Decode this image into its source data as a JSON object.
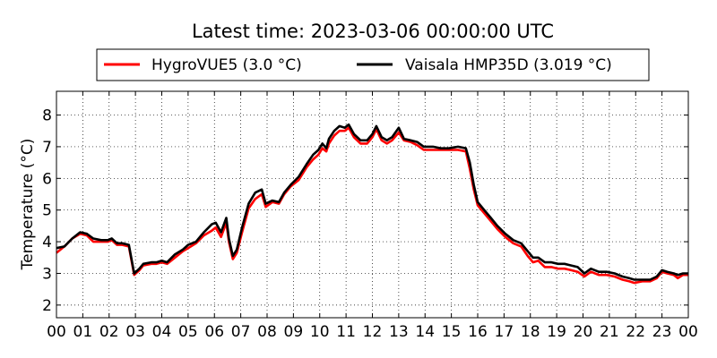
{
  "chart_data": {
    "type": "line",
    "title": "Latest time: 2023-03-06 00:00:00 UTC",
    "xlabel": "",
    "ylabel": "Temperature (°C)",
    "xlim": [
      0,
      24
    ],
    "ylim": [
      1.6,
      8.75
    ],
    "x_ticks": [
      0,
      1,
      2,
      3,
      4,
      5,
      6,
      7,
      8,
      9,
      10,
      11,
      12,
      13,
      14,
      15,
      16,
      17,
      18,
      19,
      20,
      21,
      22,
      23,
      24
    ],
    "x_tick_labels": [
      "00",
      "01",
      "02",
      "03",
      "04",
      "05",
      "06",
      "07",
      "08",
      "09",
      "10",
      "11",
      "12",
      "13",
      "14",
      "15",
      "16",
      "17",
      "18",
      "19",
      "20",
      "21",
      "22",
      "23",
      "00"
    ],
    "y_ticks": [
      2,
      3,
      4,
      5,
      6,
      7,
      8
    ],
    "y_tick_labels": [
      "2",
      "3",
      "4",
      "5",
      "6",
      "7",
      "8"
    ],
    "grid": true,
    "legend_position": "top-center",
    "series": [
      {
        "name": "HygroVUE5 (3.0 °C)",
        "color": "#ff0000",
        "points": [
          [
            0,
            3.65
          ],
          [
            0.3,
            3.85
          ],
          [
            0.6,
            4.1
          ],
          [
            0.9,
            4.25
          ],
          [
            1.15,
            4.2
          ],
          [
            1.4,
            4.0
          ],
          [
            1.7,
            4.0
          ],
          [
            1.95,
            4.0
          ],
          [
            2.1,
            4.05
          ],
          [
            2.3,
            3.9
          ],
          [
            2.5,
            3.9
          ],
          [
            2.75,
            3.85
          ],
          [
            2.95,
            2.95
          ],
          [
            3.15,
            3.1
          ],
          [
            3.3,
            3.25
          ],
          [
            3.6,
            3.3
          ],
          [
            3.8,
            3.3
          ],
          [
            4.0,
            3.35
          ],
          [
            4.2,
            3.3
          ],
          [
            4.5,
            3.5
          ],
          [
            4.8,
            3.7
          ],
          [
            5.0,
            3.8
          ],
          [
            5.3,
            3.95
          ],
          [
            5.6,
            4.2
          ],
          [
            5.9,
            4.35
          ],
          [
            6.05,
            4.45
          ],
          [
            6.25,
            4.15
          ],
          [
            6.45,
            4.6
          ],
          [
            6.55,
            4.0
          ],
          [
            6.7,
            3.45
          ],
          [
            6.85,
            3.65
          ],
          [
            7.05,
            4.3
          ],
          [
            7.3,
            5.05
          ],
          [
            7.55,
            5.35
          ],
          [
            7.8,
            5.5
          ],
          [
            7.95,
            5.1
          ],
          [
            8.2,
            5.25
          ],
          [
            8.45,
            5.2
          ],
          [
            8.65,
            5.5
          ],
          [
            8.9,
            5.75
          ],
          [
            9.2,
            5.95
          ],
          [
            9.5,
            6.35
          ],
          [
            9.75,
            6.6
          ],
          [
            9.95,
            6.75
          ],
          [
            10.1,
            6.95
          ],
          [
            10.25,
            6.85
          ],
          [
            10.35,
            7.1
          ],
          [
            10.55,
            7.35
          ],
          [
            10.75,
            7.5
          ],
          [
            10.95,
            7.5
          ],
          [
            11.1,
            7.6
          ],
          [
            11.3,
            7.3
          ],
          [
            11.55,
            7.1
          ],
          [
            11.8,
            7.1
          ],
          [
            12.0,
            7.3
          ],
          [
            12.15,
            7.55
          ],
          [
            12.35,
            7.2
          ],
          [
            12.55,
            7.1
          ],
          [
            12.75,
            7.2
          ],
          [
            13.0,
            7.45
          ],
          [
            13.2,
            7.2
          ],
          [
            13.45,
            7.15
          ],
          [
            13.7,
            7.05
          ],
          [
            13.95,
            6.9
          ],
          [
            14.3,
            6.9
          ],
          [
            14.6,
            6.9
          ],
          [
            14.9,
            6.9
          ],
          [
            15.25,
            6.9
          ],
          [
            15.55,
            6.85
          ],
          [
            15.7,
            6.3
          ],
          [
            15.85,
            5.65
          ],
          [
            16.0,
            5.15
          ],
          [
            16.25,
            4.9
          ],
          [
            16.5,
            4.65
          ],
          [
            16.75,
            4.4
          ],
          [
            17.05,
            4.15
          ],
          [
            17.35,
            3.95
          ],
          [
            17.65,
            3.85
          ],
          [
            17.9,
            3.55
          ],
          [
            18.1,
            3.35
          ],
          [
            18.3,
            3.4
          ],
          [
            18.55,
            3.2
          ],
          [
            18.8,
            3.2
          ],
          [
            19.05,
            3.15
          ],
          [
            19.3,
            3.15
          ],
          [
            19.55,
            3.1
          ],
          [
            19.8,
            3.05
          ],
          [
            20.05,
            2.9
          ],
          [
            20.3,
            3.05
          ],
          [
            20.6,
            2.95
          ],
          [
            20.9,
            2.95
          ],
          [
            21.2,
            2.9
          ],
          [
            21.5,
            2.8
          ],
          [
            21.75,
            2.75
          ],
          [
            21.95,
            2.7
          ],
          [
            22.25,
            2.75
          ],
          [
            22.55,
            2.75
          ],
          [
            22.8,
            2.85
          ],
          [
            23.0,
            3.05
          ],
          [
            23.2,
            3.0
          ],
          [
            23.45,
            2.95
          ],
          [
            23.6,
            2.85
          ],
          [
            23.8,
            2.95
          ],
          [
            24.0,
            2.95
          ]
        ]
      },
      {
        "name": "Vaisala HMP35D (3.019 °C)",
        "color": "#000000",
        "points": [
          [
            0,
            3.8
          ],
          [
            0.3,
            3.85
          ],
          [
            0.6,
            4.1
          ],
          [
            0.9,
            4.3
          ],
          [
            1.15,
            4.25
          ],
          [
            1.4,
            4.1
          ],
          [
            1.7,
            4.05
          ],
          [
            1.95,
            4.05
          ],
          [
            2.1,
            4.1
          ],
          [
            2.3,
            3.95
          ],
          [
            2.5,
            3.95
          ],
          [
            2.75,
            3.9
          ],
          [
            2.95,
            3.0
          ],
          [
            3.15,
            3.15
          ],
          [
            3.3,
            3.3
          ],
          [
            3.6,
            3.35
          ],
          [
            3.8,
            3.35
          ],
          [
            4.0,
            3.4
          ],
          [
            4.2,
            3.35
          ],
          [
            4.5,
            3.6
          ],
          [
            4.8,
            3.75
          ],
          [
            5.0,
            3.9
          ],
          [
            5.3,
            4.0
          ],
          [
            5.6,
            4.3
          ],
          [
            5.9,
            4.55
          ],
          [
            6.05,
            4.6
          ],
          [
            6.25,
            4.3
          ],
          [
            6.45,
            4.75
          ],
          [
            6.55,
            4.1
          ],
          [
            6.7,
            3.55
          ],
          [
            6.85,
            3.75
          ],
          [
            7.05,
            4.45
          ],
          [
            7.3,
            5.2
          ],
          [
            7.55,
            5.55
          ],
          [
            7.8,
            5.65
          ],
          [
            7.95,
            5.2
          ],
          [
            8.2,
            5.3
          ],
          [
            8.45,
            5.25
          ],
          [
            8.65,
            5.55
          ],
          [
            8.9,
            5.8
          ],
          [
            9.2,
            6.05
          ],
          [
            9.5,
            6.45
          ],
          [
            9.75,
            6.75
          ],
          [
            9.95,
            6.9
          ],
          [
            10.1,
            7.1
          ],
          [
            10.25,
            6.95
          ],
          [
            10.35,
            7.25
          ],
          [
            10.55,
            7.5
          ],
          [
            10.75,
            7.65
          ],
          [
            10.95,
            7.6
          ],
          [
            11.1,
            7.7
          ],
          [
            11.3,
            7.4
          ],
          [
            11.55,
            7.2
          ],
          [
            11.8,
            7.2
          ],
          [
            12.0,
            7.4
          ],
          [
            12.15,
            7.65
          ],
          [
            12.35,
            7.3
          ],
          [
            12.55,
            7.2
          ],
          [
            12.75,
            7.3
          ],
          [
            13.0,
            7.6
          ],
          [
            13.2,
            7.25
          ],
          [
            13.45,
            7.2
          ],
          [
            13.7,
            7.15
          ],
          [
            13.95,
            7.0
          ],
          [
            14.3,
            7.0
          ],
          [
            14.6,
            6.95
          ],
          [
            14.9,
            6.95
          ],
          [
            15.25,
            7.0
          ],
          [
            15.55,
            6.95
          ],
          [
            15.7,
            6.5
          ],
          [
            15.85,
            5.8
          ],
          [
            16.0,
            5.25
          ],
          [
            16.25,
            5.0
          ],
          [
            16.5,
            4.75
          ],
          [
            16.75,
            4.5
          ],
          [
            17.05,
            4.25
          ],
          [
            17.35,
            4.05
          ],
          [
            17.65,
            3.95
          ],
          [
            17.9,
            3.7
          ],
          [
            18.1,
            3.5
          ],
          [
            18.3,
            3.5
          ],
          [
            18.55,
            3.35
          ],
          [
            18.8,
            3.35
          ],
          [
            19.05,
            3.3
          ],
          [
            19.3,
            3.3
          ],
          [
            19.55,
            3.25
          ],
          [
            19.8,
            3.2
          ],
          [
            20.05,
            3.0
          ],
          [
            20.3,
            3.15
          ],
          [
            20.6,
            3.05
          ],
          [
            20.9,
            3.05
          ],
          [
            21.2,
            3.0
          ],
          [
            21.5,
            2.9
          ],
          [
            21.75,
            2.85
          ],
          [
            21.95,
            2.8
          ],
          [
            22.25,
            2.8
          ],
          [
            22.55,
            2.8
          ],
          [
            22.8,
            2.9
          ],
          [
            23.0,
            3.1
          ],
          [
            23.2,
            3.05
          ],
          [
            23.45,
            3.0
          ],
          [
            23.6,
            2.95
          ],
          [
            23.8,
            3.0
          ],
          [
            24.0,
            3.0
          ]
        ]
      }
    ]
  }
}
